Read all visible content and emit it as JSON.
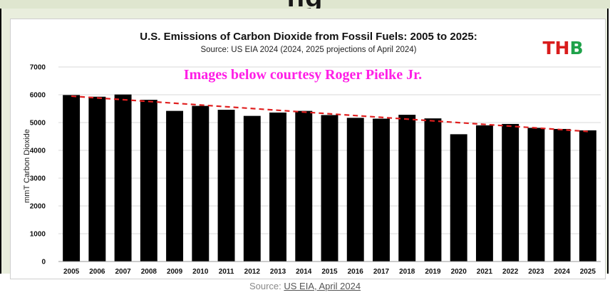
{
  "header_band": {
    "text": "ng"
  },
  "chart_data": {
    "type": "bar",
    "title": "U.S. Emissions of Carbon Dioxide from Fossil Fuels: 2005 to 2025:",
    "subtitle": "Source: US EIA 2024 (2024, 2025 projections of April 2024)",
    "logo": "THB",
    "overlay_text": "Images below courtesy Roger Pielke Jr.",
    "ylabel": "mmT Carbon Dioxide",
    "xlabel": "",
    "ylim": [
      0,
      7000
    ],
    "yticks": [
      "0",
      "1000",
      "2000",
      "3000",
      "4000",
      "5000",
      "6000",
      "7000"
    ],
    "categories": [
      "2005",
      "2006",
      "2007",
      "2008",
      "2009",
      "2010",
      "2011",
      "2012",
      "2013",
      "2014",
      "2015",
      "2016",
      "2017",
      "2018",
      "2019",
      "2020",
      "2021",
      "2022",
      "2023",
      "2024",
      "2025"
    ],
    "values": [
      5990,
      5930,
      6010,
      5820,
      5420,
      5600,
      5460,
      5240,
      5360,
      5420,
      5270,
      5170,
      5140,
      5280,
      5150,
      4580,
      4900,
      4950,
      4810,
      4770,
      4720
    ],
    "trendline": {
      "start": 5950,
      "end": 4680,
      "style": "dashed",
      "color": "#e02020"
    },
    "bar_color": "#000000",
    "grid": true,
    "legend": "none"
  },
  "colors": {
    "overlay": "#ff1ee6",
    "logo_red": "#d91c1c",
    "logo_green": "#1fa24a"
  },
  "footer": {
    "prefix": "Source: ",
    "link_text": "US EIA, April 2024"
  }
}
